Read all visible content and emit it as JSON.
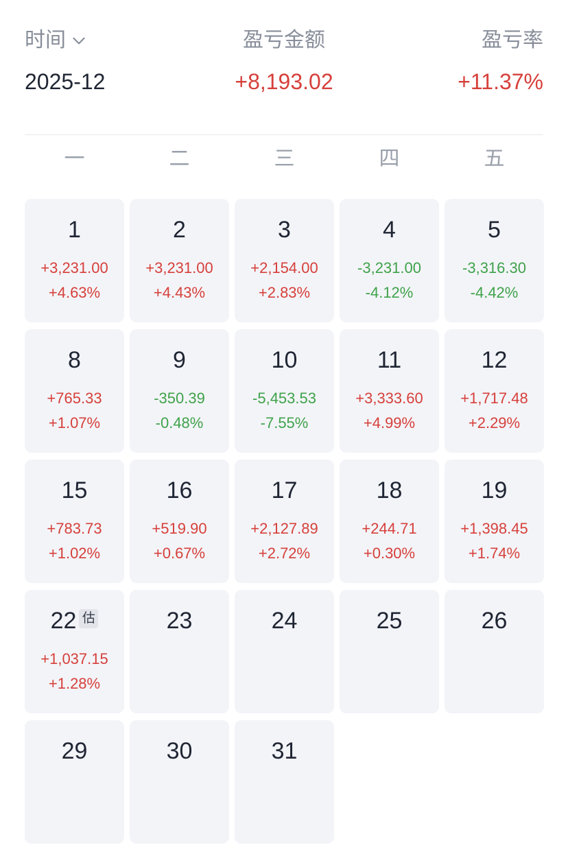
{
  "summary": {
    "time_label": "时间",
    "amount_label": "盈亏金额",
    "rate_label": "盈亏率",
    "month": "2025-12",
    "total_amount": "+8,193.02",
    "total_rate": "+11.37%"
  },
  "weekdays": [
    "一",
    "二",
    "三",
    "四",
    "五"
  ],
  "colors": {
    "up": "#d6403b",
    "down": "#3fa24a"
  },
  "calendar": [
    {
      "day": "1",
      "amount": "+3,231.00",
      "rate": "+4.63%",
      "dir": "up"
    },
    {
      "day": "2",
      "amount": "+3,231.00",
      "rate": "+4.43%",
      "dir": "up"
    },
    {
      "day": "3",
      "amount": "+2,154.00",
      "rate": "+2.83%",
      "dir": "up"
    },
    {
      "day": "4",
      "amount": "-3,231.00",
      "rate": "-4.12%",
      "dir": "down"
    },
    {
      "day": "5",
      "amount": "-3,316.30",
      "rate": "-4.42%",
      "dir": "down"
    },
    {
      "day": "8",
      "amount": "+765.33",
      "rate": "+1.07%",
      "dir": "up"
    },
    {
      "day": "9",
      "amount": "-350.39",
      "rate": "-0.48%",
      "dir": "down"
    },
    {
      "day": "10",
      "amount": "-5,453.53",
      "rate": "-7.55%",
      "dir": "down"
    },
    {
      "day": "11",
      "amount": "+3,333.60",
      "rate": "+4.99%",
      "dir": "up"
    },
    {
      "day": "12",
      "amount": "+1,717.48",
      "rate": "+2.29%",
      "dir": "up"
    },
    {
      "day": "15",
      "amount": "+783.73",
      "rate": "+1.02%",
      "dir": "up"
    },
    {
      "day": "16",
      "amount": "+519.90",
      "rate": "+0.67%",
      "dir": "up"
    },
    {
      "day": "17",
      "amount": "+2,127.89",
      "rate": "+2.72%",
      "dir": "up"
    },
    {
      "day": "18",
      "amount": "+244.71",
      "rate": "+0.30%",
      "dir": "up"
    },
    {
      "day": "19",
      "amount": "+1,398.45",
      "rate": "+1.74%",
      "dir": "up"
    },
    {
      "day": "22",
      "amount": "+1,037.15",
      "rate": "+1.28%",
      "dir": "up",
      "badge": "估"
    },
    {
      "day": "23"
    },
    {
      "day": "24"
    },
    {
      "day": "25"
    },
    {
      "day": "26"
    },
    {
      "day": "29"
    },
    {
      "day": "30"
    },
    {
      "day": "31"
    }
  ]
}
